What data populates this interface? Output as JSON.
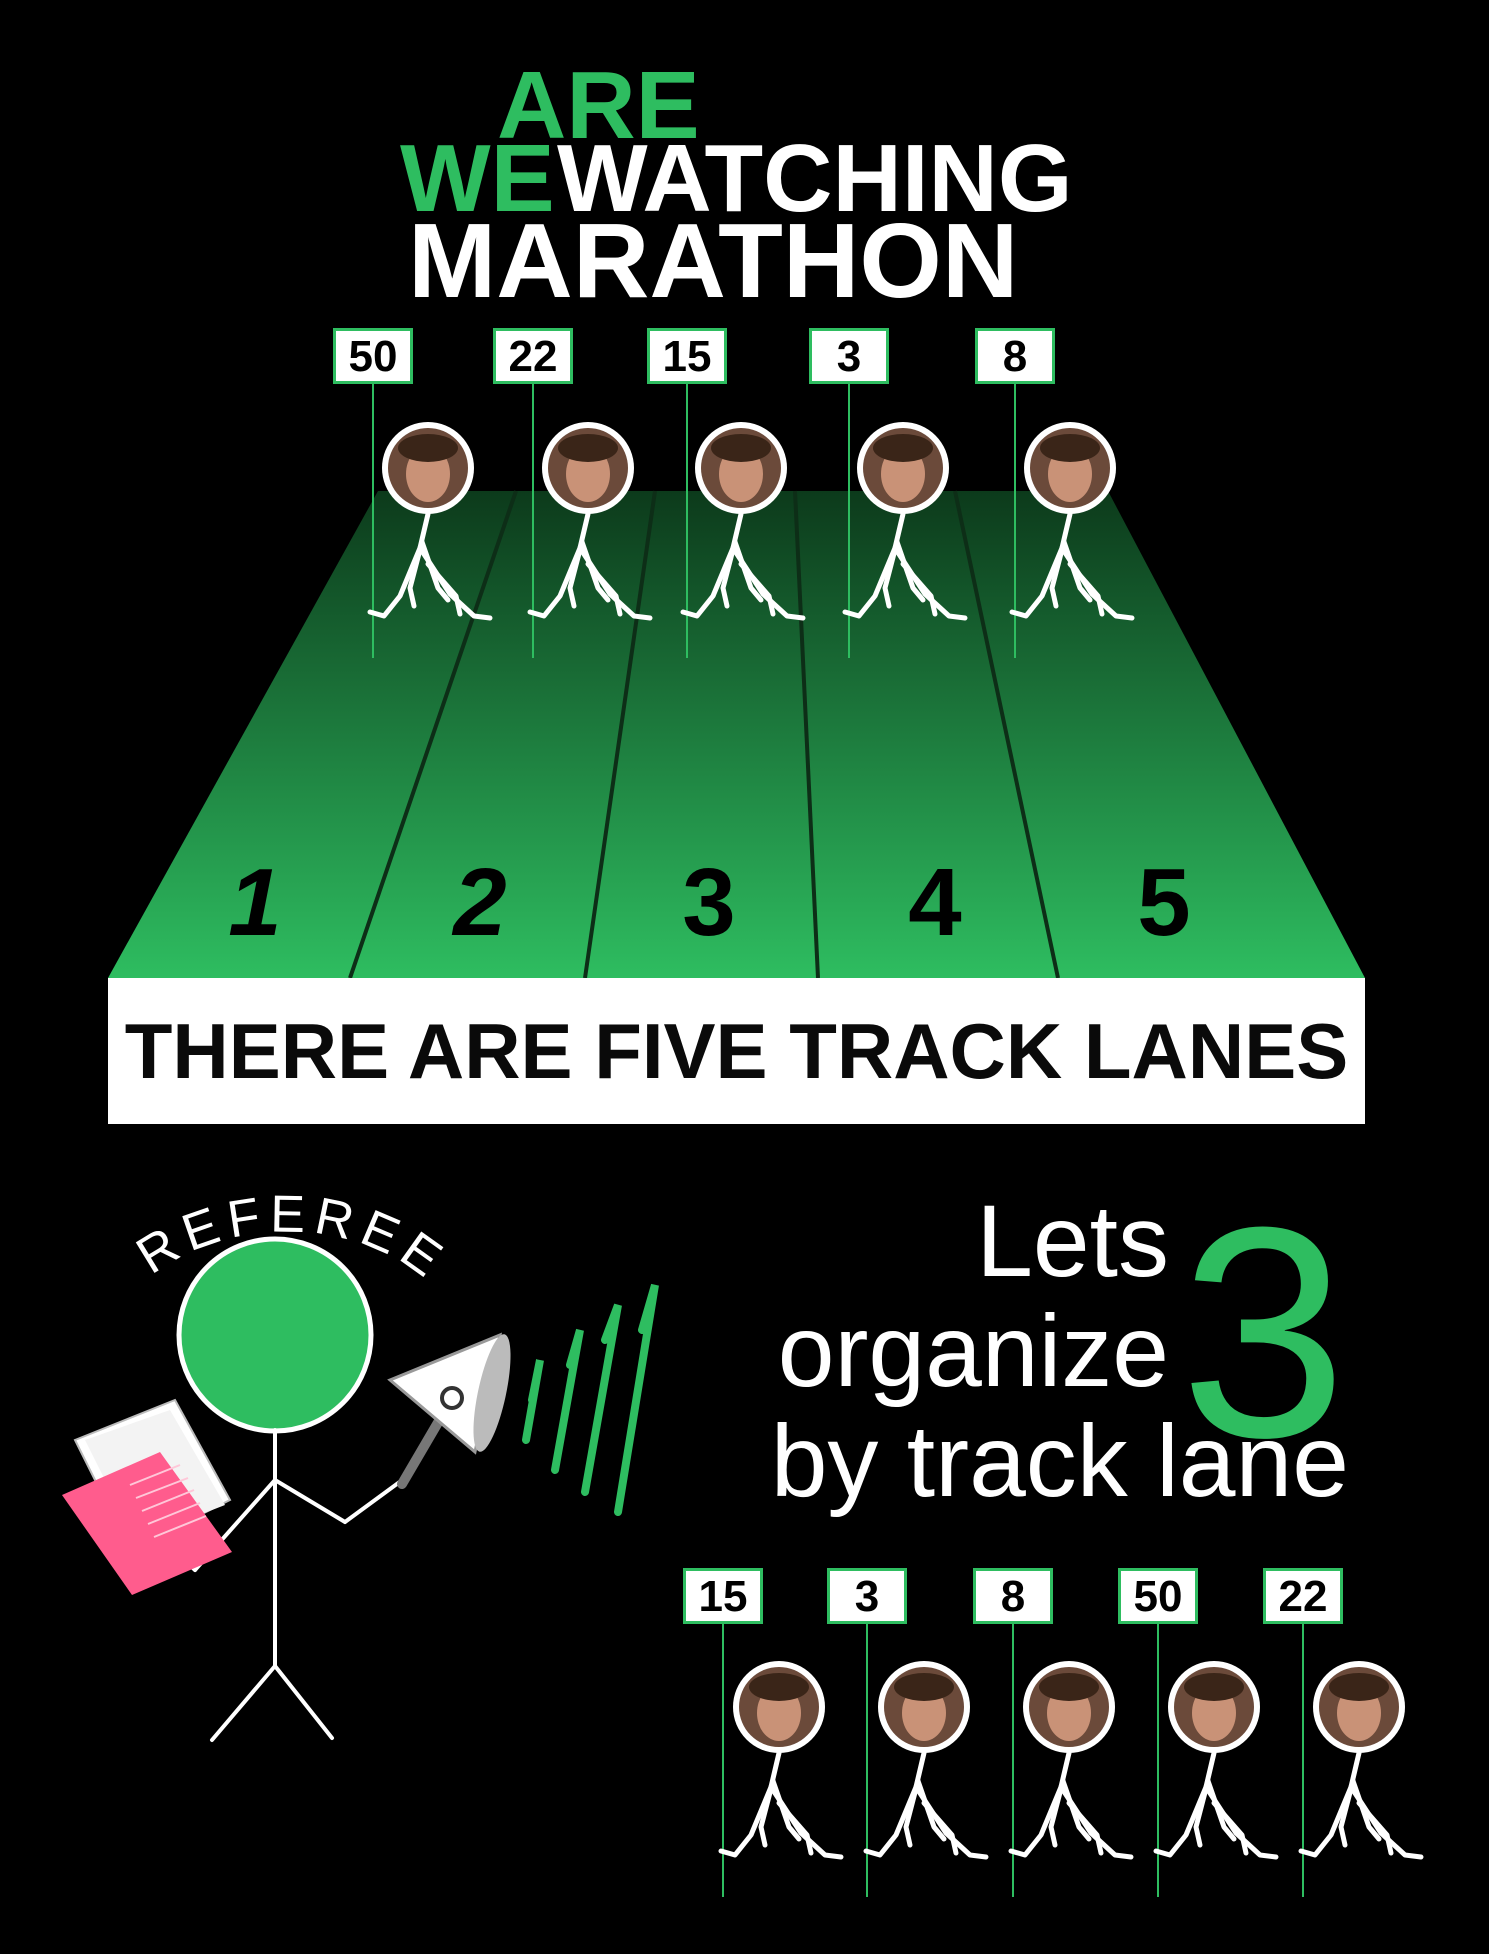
{
  "title": {
    "word_are": "ARE",
    "word_we": "WE",
    "word_watching": "WATCHING",
    "word_marathon": "MARATHON"
  },
  "runners_top": [
    {
      "bib": "50",
      "face": "woman-brown-hair-face"
    },
    {
      "bib": "22",
      "face": "woman-dark-hair-face"
    },
    {
      "bib": "15",
      "face": "bearded-man-face"
    },
    {
      "bib": "3",
      "face": "curly-hair-man-face"
    },
    {
      "bib": "8",
      "face": "man-yellow-beanie-face"
    }
  ],
  "lane_numbers": [
    "1",
    "2",
    "3",
    "4",
    "5"
  ],
  "banner_text": "THERE ARE FIVE TRACK LANES",
  "referee_label": "REFEREE",
  "organize": {
    "line1": "Lets",
    "line2": "organize",
    "line3": "by track lane",
    "big_number": "3"
  },
  "runners_bottom": [
    {
      "bib": "15",
      "face": "bearded-man-face"
    },
    {
      "bib": "3",
      "face": "curly-hair-man-face"
    },
    {
      "bib": "8",
      "face": "man-yellow-beanie-face"
    },
    {
      "bib": "50",
      "face": "woman-brown-hair-face"
    },
    {
      "bib": "22",
      "face": "woman-dark-hair-face"
    }
  ],
  "colors": {
    "accent_green": "#2ebd60",
    "track_dark": "#0c3a1b",
    "book_pink": "#ff5c8d",
    "background": "#000000"
  }
}
